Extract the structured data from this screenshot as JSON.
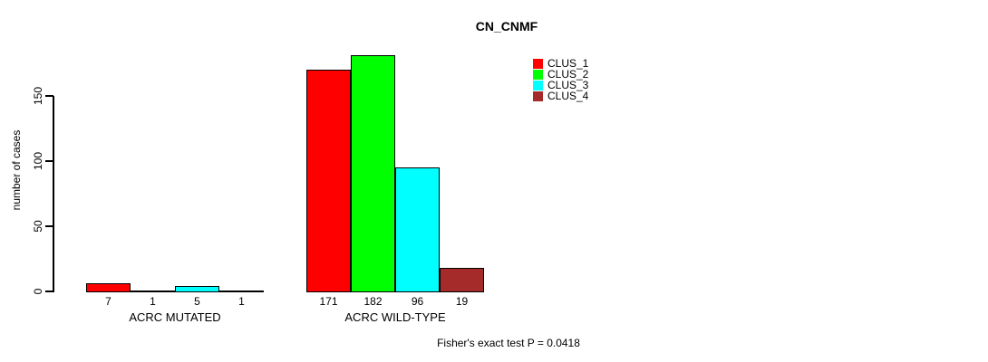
{
  "chart_data": {
    "type": "bar",
    "title": "CN_CNMF",
    "ylabel": "number of cases",
    "xlabel": "",
    "footnote": "Fisher's exact test P = 0.0418",
    "yticks": [
      0,
      50,
      100,
      150
    ],
    "ylim": [
      0,
      150
    ],
    "grid": false,
    "legend_position": "top-right",
    "bar_value_labels": true,
    "categories": [
      "ACRC MUTATED",
      "ACRC WILD-TYPE"
    ],
    "series": [
      {
        "name": "CLUS_1",
        "color": "#ff0000",
        "values": [
          7,
          171
        ]
      },
      {
        "name": "CLUS_2",
        "color": "#00ff00",
        "values": [
          1,
          182
        ]
      },
      {
        "name": "CLUS_3",
        "color": "#00ffff",
        "values": [
          5,
          96
        ]
      },
      {
        "name": "CLUS_4",
        "color": "#a52a2a",
        "values": [
          1,
          19
        ]
      }
    ]
  }
}
